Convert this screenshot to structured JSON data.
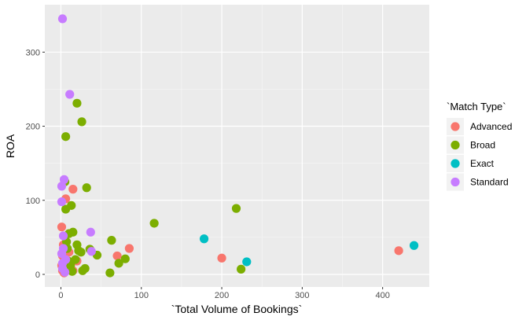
{
  "chart_data": {
    "type": "scatter",
    "xlabel": "`Total Volume of Bookings`",
    "ylabel": "ROA",
    "xlim": [
      -20,
      458
    ],
    "ylim": [
      -17,
      364
    ],
    "x_ticks": [
      0,
      100,
      200,
      300,
      400
    ],
    "y_ticks": [
      0,
      100,
      200,
      300
    ],
    "x_tick_labels": [
      "0",
      "100",
      "200",
      "300",
      "400"
    ],
    "y_tick_labels": [
      "0",
      "100",
      "200",
      "300"
    ],
    "grid": true,
    "legend": {
      "title": "`Match Type`",
      "position": "right"
    },
    "series": [
      {
        "name": "Advanced",
        "color": "#F8766D",
        "points": [
          [
            1,
            64
          ],
          [
            3,
            40
          ],
          [
            6,
            102
          ],
          [
            15,
            115
          ],
          [
            420,
            32
          ],
          [
            200,
            22
          ],
          [
            85,
            35
          ],
          [
            70,
            25
          ],
          [
            20,
            18
          ],
          [
            2,
            5
          ],
          [
            4,
            2
          ],
          [
            1,
            12
          ],
          [
            10,
            30
          ],
          [
            5,
            8
          ],
          [
            15,
            5
          ],
          [
            2,
            25
          ]
        ]
      },
      {
        "name": "Broad",
        "color": "#7CAE00",
        "points": [
          [
            20,
            231
          ],
          [
            26,
            206
          ],
          [
            6,
            186
          ],
          [
            5,
            125
          ],
          [
            32,
            117
          ],
          [
            13,
            93
          ],
          [
            6,
            88
          ],
          [
            116,
            69
          ],
          [
            218,
            89
          ],
          [
            15,
            57
          ],
          [
            10,
            55
          ],
          [
            63,
            46
          ],
          [
            22,
            32
          ],
          [
            36,
            34
          ],
          [
            45,
            26
          ],
          [
            80,
            21
          ],
          [
            72,
            15
          ],
          [
            61,
            2
          ],
          [
            224,
            7
          ],
          [
            27,
            5
          ],
          [
            12,
            12
          ],
          [
            8,
            35
          ],
          [
            18,
            20
          ],
          [
            3,
            10
          ],
          [
            25,
            30
          ],
          [
            30,
            8
          ],
          [
            7,
            44
          ],
          [
            14,
            4
          ],
          [
            20,
            40
          ],
          [
            9,
            18
          ]
        ]
      },
      {
        "name": "Exact",
        "color": "#00BFC4",
        "points": [
          [
            178,
            48
          ],
          [
            439,
            39
          ],
          [
            231,
            17
          ]
        ]
      },
      {
        "name": "Standard",
        "color": "#C77CFF",
        "points": [
          [
            2,
            345
          ],
          [
            11,
            243
          ],
          [
            4,
            128
          ],
          [
            1,
            119
          ],
          [
            1,
            98
          ],
          [
            3,
            52
          ],
          [
            37,
            57
          ],
          [
            1,
            28
          ],
          [
            2,
            15
          ],
          [
            5,
            3
          ],
          [
            38,
            31
          ],
          [
            3,
            35
          ],
          [
            6,
            20
          ],
          [
            2,
            8
          ]
        ]
      }
    ]
  }
}
